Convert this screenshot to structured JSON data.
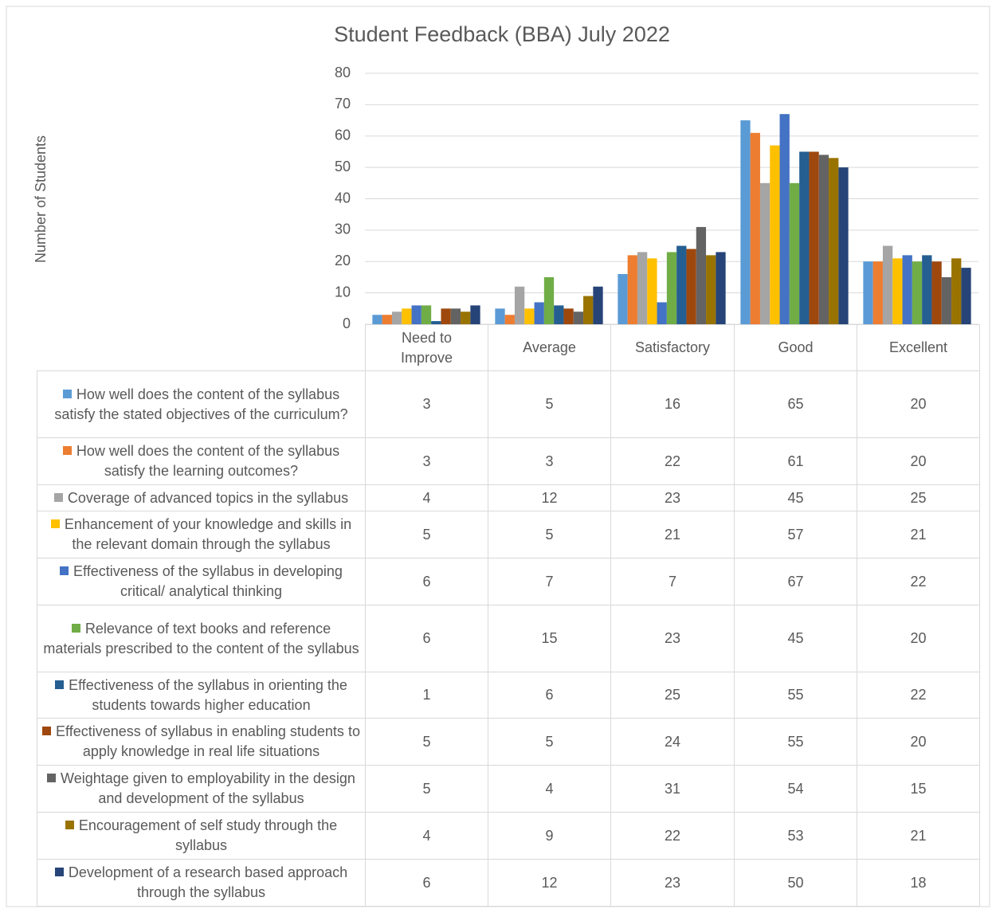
{
  "chart_data": {
    "type": "bar",
    "title": "Student Feedback (BBA) July 2022",
    "y_label": "Number of Students",
    "categories": [
      "Need to Improve",
      "Average",
      "Satisfactory",
      "Good",
      "Excellent"
    ],
    "ylim": [
      0,
      80
    ],
    "yticks": [
      0,
      10,
      20,
      30,
      40,
      50,
      60,
      70,
      80
    ],
    "grid": true,
    "series": [
      {
        "name": "How well does the content of the syllabus satisfy the stated objectives of the curriculum?",
        "color": "#5B9BD5",
        "values": [
          3,
          5,
          16,
          65,
          20
        ]
      },
      {
        "name": "How well does the content of the syllabus satisfy the learning outcomes?",
        "color": "#ED7D31",
        "values": [
          3,
          3,
          22,
          61,
          20
        ]
      },
      {
        "name": "Coverage of advanced topics in the syllabus",
        "color": "#A5A5A5",
        "values": [
          4,
          12,
          23,
          45,
          25
        ]
      },
      {
        "name": "Enhancement of your knowledge and skills in the relevant domain through the syllabus",
        "color": "#FFC000",
        "values": [
          5,
          5,
          21,
          57,
          21
        ]
      },
      {
        "name": "Effectiveness of the syllabus in developing critical/ analytical thinking",
        "color": "#4472C4",
        "values": [
          6,
          7,
          7,
          67,
          22
        ]
      },
      {
        "name": "Relevance of text books and reference materials prescribed to the content of the syllabus",
        "color": "#70AD47",
        "values": [
          6,
          15,
          23,
          45,
          20
        ]
      },
      {
        "name": "Effectiveness of the syllabus in orienting the students towards higher education",
        "color": "#255E91",
        "values": [
          1,
          6,
          25,
          55,
          22
        ]
      },
      {
        "name": "Effectiveness of syllabus in enabling students to apply knowledge in real life situations",
        "color": "#9E480E",
        "values": [
          5,
          5,
          24,
          55,
          20
        ]
      },
      {
        "name": "Weightage given to employability in the design and development of the syllabus",
        "color": "#636363",
        "values": [
          5,
          4,
          31,
          54,
          15
        ]
      },
      {
        "name": "Encouragement of self study through the syllabus",
        "color": "#997300",
        "values": [
          4,
          9,
          22,
          53,
          21
        ]
      },
      {
        "name": "Development of a research based approach through the syllabus",
        "color": "#264478",
        "values": [
          6,
          12,
          23,
          50,
          18
        ]
      }
    ]
  }
}
